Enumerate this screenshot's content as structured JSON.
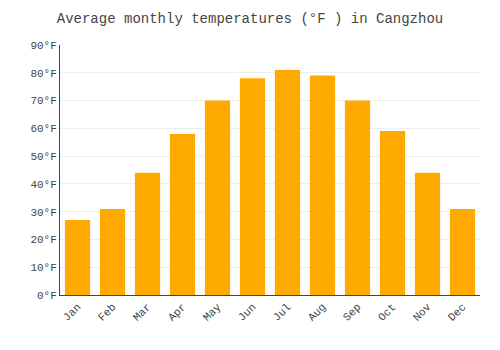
{
  "chart_data": {
    "type": "bar",
    "title": "Average monthly temperatures (°F ) in Cangzhou",
    "categories": [
      "Jan",
      "Feb",
      "Mar",
      "Apr",
      "May",
      "Jun",
      "Jul",
      "Aug",
      "Sep",
      "Oct",
      "Nov",
      "Dec"
    ],
    "values": [
      27,
      31,
      44,
      58,
      70,
      78,
      81,
      79,
      70,
      59,
      44,
      31
    ],
    "color": "#FFAA00",
    "ylim": [
      0,
      90
    ],
    "yticks": [
      {
        "value": 0,
        "label": "0°F"
      },
      {
        "value": 10,
        "label": "10°F"
      },
      {
        "value": 20,
        "label": "20°F"
      },
      {
        "value": 30,
        "label": "30°F"
      },
      {
        "value": 40,
        "label": "40°F"
      },
      {
        "value": 50,
        "label": "50°F"
      },
      {
        "value": 60,
        "label": "60°F"
      },
      {
        "value": 70,
        "label": "70°F"
      },
      {
        "value": 80,
        "label": "80°F"
      },
      {
        "value": 90,
        "label": "90°F"
      }
    ],
    "grid": true
  }
}
